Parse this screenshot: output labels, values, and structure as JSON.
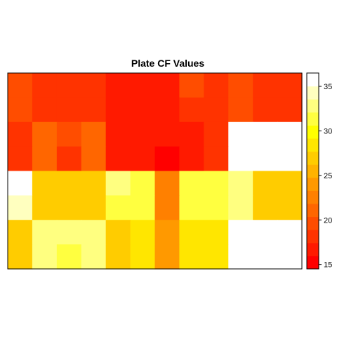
{
  "chart_data": {
    "type": "heatmap",
    "title": "Plate CF Values",
    "rows": 8,
    "cols": 12,
    "values": [
      [
        20,
        18,
        18,
        18,
        16,
        16,
        16,
        20,
        18,
        20,
        18,
        18
      ],
      [
        20,
        18,
        18,
        18,
        16,
        16,
        16,
        18,
        18,
        20,
        18,
        18
      ],
      [
        18,
        21,
        20,
        21,
        16,
        16,
        16,
        16,
        18,
        36,
        36,
        36
      ],
      [
        18,
        21,
        18,
        21,
        16,
        16,
        14,
        16,
        18,
        36,
        36,
        36
      ],
      [
        36,
        27,
        27,
        27,
        33,
        31,
        23,
        31,
        31,
        33,
        27,
        27
      ],
      [
        34,
        27,
        27,
        27,
        31,
        31,
        23,
        31,
        31,
        33,
        27,
        27
      ],
      [
        27,
        33,
        33,
        33,
        27,
        29,
        24,
        29,
        29,
        36,
        36,
        36
      ],
      [
        27,
        33,
        31,
        33,
        27,
        29,
        24,
        29,
        29,
        36,
        36,
        36
      ]
    ],
    "color_scale": {
      "min": 14.5,
      "max": 36.5,
      "colors": [
        "#ff0000",
        "#ff1a00",
        "#ff3300",
        "#ff4d00",
        "#ff6600",
        "#ff8000",
        "#ff9900",
        "#ffb300",
        "#ffcc00",
        "#ffe600",
        "#ffff00",
        "#ffff40",
        "#ffff80",
        "#ffffbf",
        "#ffffff"
      ],
      "ticks": [
        "15",
        "20",
        "25",
        "30",
        "35"
      ],
      "tick_values": [
        15,
        20,
        25,
        30,
        35
      ]
    }
  }
}
